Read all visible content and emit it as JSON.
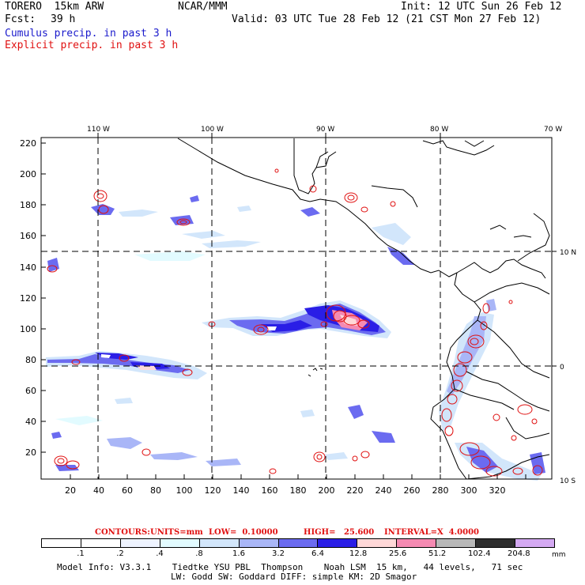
{
  "header": {
    "title": "TORERO  15km ARW",
    "org": "NCAR/MMM",
    "init": "Init: 12 UTC Sun 26 Feb 12",
    "fcst_label": "Fcst:",
    "fcst_value": "39 h",
    "valid": "Valid: 03 UTC Tue 28 Feb 12 (21 CST Mon 27 Feb 12)",
    "field1": "Cumulus precip. in past 3 h",
    "field2": "Explicit precip. in past 3 h"
  },
  "map": {
    "lon_labels": [
      "110 W",
      "100 W",
      "90 W",
      "80 W",
      "70 W"
    ],
    "lat_labels": [
      "10 N",
      "0",
      "10 S"
    ],
    "y_ticks": [
      "220",
      "200",
      "180",
      "160",
      "140",
      "120",
      "100",
      "80",
      "60",
      "40",
      "20"
    ],
    "x_ticks": [
      "20",
      "40",
      "60",
      "80",
      "100",
      "120",
      "140",
      "160",
      "180",
      "200",
      "220",
      "240",
      "260",
      "280",
      "300",
      "320"
    ],
    "colors": {
      "coast": "#000000",
      "grid": "#000000",
      "cumulus": "#3333ee",
      "explicit": "#e01010"
    }
  },
  "contour_line": {
    "contours": "CONTOURS:",
    "units": "UNITS=mm",
    "low": "LOW=  0.10000",
    "high": "HIGH=   25.600",
    "interval": "INTERVAL=X  4.0000"
  },
  "colorbar": {
    "labels": [
      ".1",
      ".2",
      ".4",
      ".8",
      "1.6",
      "3.2",
      "6.4",
      "12.8",
      "25.6",
      "51.2",
      "102.4",
      "204.8"
    ],
    "unit": "mm",
    "colors": [
      "#ffffff",
      "#ffffff",
      "#eef3ff",
      "#e2fbff",
      "#d2e6fb",
      "#a9b6f7",
      "#6b6bf0",
      "#2a1ee6",
      "#ffd8d8",
      "#f58ab2",
      "#b8b8b8",
      "#2e2e2e",
      "#d4a9f2"
    ]
  },
  "footer": {
    "line1": "Model Info: V3.3.1    Tiedtke YSU PBL  Thompson    Noah LSM  15 km,   44 levels,   71 sec",
    "line2": "LW: Godd SW: Goddard DIFF: simple KM: 2D Smagor"
  }
}
